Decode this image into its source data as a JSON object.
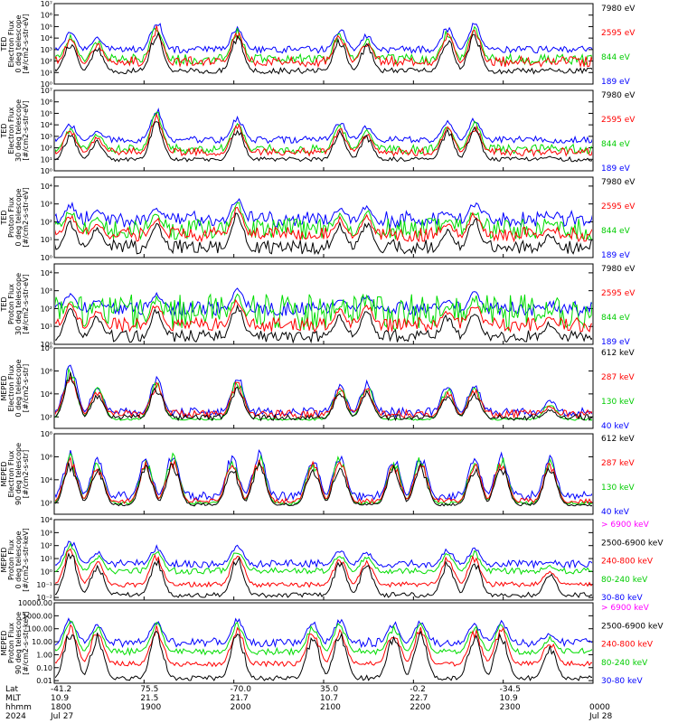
{
  "colors": {
    "black": "#000000",
    "red": "#ff0000",
    "green": "#00dd00",
    "blue": "#0000ff",
    "magenta": "#ff00ff"
  },
  "chart_data": [
    {
      "type": "line",
      "ylabel": [
        "TED",
        "Electron Flux",
        "0 deg telescope",
        "[#/cm2-s-str-eV]"
      ],
      "yscale": "log",
      "ylim_exp": [
        0,
        7
      ],
      "ytick_labels": [
        "10⁰",
        "10¹",
        "10²",
        "10³",
        "10⁴",
        "10⁵",
        "10⁶",
        "10⁷"
      ],
      "series": [
        {
          "name": "7980 eV",
          "color": "#000000"
        },
        {
          "name": "2595 eV",
          "color": "#ff0000"
        },
        {
          "name": "844 eV",
          "color": "#00dd00"
        },
        {
          "name": "189 eV",
          "color": "#0000ff"
        }
      ],
      "levels": {
        "blue": [
          2.7,
          3.3
        ],
        "green": [
          1.7,
          2.6
        ],
        "red": [
          1.5,
          2.4
        ],
        "black": [
          0.9,
          1.4
        ]
      },
      "peaks": [
        [
          0.03,
          4.6
        ],
        [
          0.08,
          4.2
        ],
        [
          0.19,
          5.7
        ],
        [
          0.34,
          5.2
        ],
        [
          0.53,
          5.0
        ],
        [
          0.58,
          4.4
        ],
        [
          0.73,
          5.1
        ],
        [
          0.78,
          5.4
        ],
        [
          0.92,
          2.2
        ]
      ]
    },
    {
      "type": "line",
      "ylabel": [
        "TED",
        "Electron Flux",
        "30 deg telescope",
        "[#/cm2-s-str-eV]"
      ],
      "yscale": "log",
      "ylim_exp": [
        0,
        7
      ],
      "ytick_labels": [
        "10⁰",
        "10¹",
        "10²",
        "10³",
        "10⁴",
        "10⁵",
        "10⁶",
        "10⁷"
      ],
      "series": [
        {
          "name": "7980 eV",
          "color": "#000000"
        },
        {
          "name": "2595 eV",
          "color": "#ff0000"
        },
        {
          "name": "844 eV",
          "color": "#00dd00"
        },
        {
          "name": "189 eV",
          "color": "#0000ff"
        }
      ],
      "levels": {
        "blue": [
          2.4,
          3.0
        ],
        "green": [
          1.5,
          2.3
        ],
        "red": [
          1.3,
          2.0
        ],
        "black": [
          0.8,
          1.2
        ]
      },
      "peaks": [
        [
          0.03,
          4.2
        ],
        [
          0.08,
          3.6
        ],
        [
          0.19,
          5.6
        ],
        [
          0.34,
          4.8
        ],
        [
          0.53,
          4.4
        ],
        [
          0.58,
          4.0
        ],
        [
          0.73,
          4.6
        ],
        [
          0.78,
          4.7
        ],
        [
          0.92,
          2.2
        ]
      ]
    },
    {
      "type": "line",
      "ylabel": [
        "TED",
        "Proton Flux",
        "0 deg telescope",
        "[#/cm2-s-str-eV]"
      ],
      "yscale": "log",
      "ylim_exp": [
        0,
        4.5
      ],
      "ytick_labels": [
        "10⁰",
        "10¹",
        "10²",
        "10³",
        "10⁴"
      ],
      "series": [
        {
          "name": "7980 eV",
          "color": "#000000"
        },
        {
          "name": "2595 eV",
          "color": "#ff0000"
        },
        {
          "name": "844 eV",
          "color": "#00dd00"
        },
        {
          "name": "189 eV",
          "color": "#0000ff"
        }
      ],
      "levels": {
        "blue": [
          1.7,
          2.6
        ],
        "green": [
          1.0,
          2.2
        ],
        "red": [
          0.9,
          1.7
        ],
        "black": [
          0.2,
          1.0
        ]
      },
      "peaks": [
        [
          0.03,
          3.1
        ],
        [
          0.08,
          2.7
        ],
        [
          0.19,
          2.9
        ],
        [
          0.34,
          3.5
        ],
        [
          0.53,
          2.9
        ],
        [
          0.58,
          3.0
        ],
        [
          0.73,
          2.6
        ],
        [
          0.78,
          3.2
        ],
        [
          0.92,
          2.3
        ]
      ]
    },
    {
      "type": "line",
      "ylabel": [
        "TED",
        "Proton Flux",
        "30 deg telescope",
        "[#/cm2-s-str-eV]"
      ],
      "yscale": "log",
      "ylim_exp": [
        0,
        4.5
      ],
      "ytick_labels": [
        "10⁰",
        "10¹",
        "10²",
        "10³",
        "10⁴"
      ],
      "series": [
        {
          "name": "7980 eV",
          "color": "#000000"
        },
        {
          "name": "2595 eV",
          "color": "#ff0000"
        },
        {
          "name": "844 eV",
          "color": "#00dd00"
        },
        {
          "name": "189 eV",
          "color": "#0000ff"
        }
      ],
      "levels": {
        "blue": [
          1.6,
          2.4
        ],
        "green": [
          0.8,
          2.8
        ],
        "red": [
          0.7,
          1.5
        ],
        "black": [
          0.1,
          0.8
        ]
      },
      "peaks": [
        [
          0.03,
          3.0
        ],
        [
          0.08,
          2.6
        ],
        [
          0.19,
          3.0
        ],
        [
          0.34,
          3.3
        ],
        [
          0.53,
          2.6
        ],
        [
          0.58,
          2.9
        ],
        [
          0.73,
          2.6
        ],
        [
          0.78,
          3.0
        ],
        [
          0.92,
          2.2
        ]
      ]
    },
    {
      "type": "line",
      "ylabel": [
        "MEPED",
        "Electron Flux",
        "0 deg telescope",
        "[#/cm2-s-str]"
      ],
      "yscale": "log",
      "ylim_exp": [
        1,
        8
      ],
      "ytick_labels": [
        "10²",
        "10⁴",
        "10⁶",
        "10⁸"
      ],
      "ytick_exps": [
        2,
        4,
        6,
        8
      ],
      "series": [
        {
          "name": "612 keV",
          "color": "#000000"
        },
        {
          "name": "287 keV",
          "color": "#ff0000"
        },
        {
          "name": "130 keV",
          "color": "#00dd00"
        },
        {
          "name": "40 keV",
          "color": "#0000ff"
        }
      ],
      "levels": {
        "blue": [
          2.0,
          2.8
        ],
        "green": [
          1.7,
          1.9
        ],
        "red": [
          1.9,
          2.6
        ],
        "black": [
          1.7,
          2.2
        ]
      },
      "peaks": [
        [
          0.03,
          6.8
        ],
        [
          0.08,
          5.0
        ],
        [
          0.19,
          5.6
        ],
        [
          0.34,
          5.8
        ],
        [
          0.53,
          5.1
        ],
        [
          0.58,
          5.2
        ],
        [
          0.73,
          5.0
        ],
        [
          0.78,
          5.2
        ],
        [
          0.92,
          3.6
        ]
      ]
    },
    {
      "type": "line",
      "ylabel": [
        "MEPED",
        "Electron Flux",
        "90 deg telescope",
        "[#/cm2-s-str]"
      ],
      "yscale": "log",
      "ylim_exp": [
        1,
        8
      ],
      "ytick_labels": [
        "10²",
        "10⁴",
        "10⁶",
        "10⁸"
      ],
      "ytick_exps": [
        2,
        4,
        6,
        8
      ],
      "series": [
        {
          "name": "612 keV",
          "color": "#000000"
        },
        {
          "name": "287 keV",
          "color": "#ff0000"
        },
        {
          "name": "130 keV",
          "color": "#00dd00"
        },
        {
          "name": "40 keV",
          "color": "#0000ff"
        }
      ],
      "levels": {
        "blue": [
          2.2,
          3.0
        ],
        "green": [
          1.8,
          2.1
        ],
        "red": [
          1.9,
          2.4
        ],
        "black": [
          1.7,
          2.0
        ]
      },
      "peaks": [
        [
          0.03,
          6.6
        ],
        [
          0.08,
          6.0
        ],
        [
          0.17,
          6.2
        ],
        [
          0.22,
          6.6
        ],
        [
          0.33,
          6.3
        ],
        [
          0.38,
          6.6
        ],
        [
          0.48,
          6.2
        ],
        [
          0.53,
          6.6
        ],
        [
          0.63,
          6.2
        ],
        [
          0.68,
          6.4
        ],
        [
          0.78,
          6.2
        ],
        [
          0.83,
          6.4
        ],
        [
          0.92,
          6.2
        ]
      ]
    },
    {
      "type": "line",
      "ylabel": [
        "MEPED",
        "Proton Flux",
        "0 deg telescope",
        "[#/cm2-s-str-keV]"
      ],
      "yscale": "log",
      "ylim_exp": [
        -2.2,
        4
      ],
      "ytick_labels": [
        "10⁻²",
        "10⁻¹",
        "10⁰",
        "10¹",
        "10²",
        "10³",
        "10⁴"
      ],
      "ytick_exps": [
        -2,
        -1,
        0,
        1,
        2,
        3,
        4
      ],
      "series": [
        {
          "name": "> 6900 keV",
          "color": "#ff00ff"
        },
        {
          "name": "2500-6900 keV",
          "color": "#000000"
        },
        {
          "name": "240-800 keV",
          "color": "#ff0000"
        },
        {
          "name": "80-240 keV",
          "color": "#00dd00"
        },
        {
          "name": "30-80 keV",
          "color": "#0000ff"
        }
      ],
      "levels": {
        "blue": [
          0.3,
          0.9
        ],
        "green": [
          -0.2,
          0.3
        ],
        "red": [
          -1.2,
          -0.8
        ],
        "black": [
          -2.0,
          -1.6
        ]
      },
      "peaks": [
        [
          0.03,
          2.6
        ],
        [
          0.08,
          1.6
        ],
        [
          0.19,
          2.0
        ],
        [
          0.34,
          2.2
        ],
        [
          0.53,
          1.8
        ],
        [
          0.58,
          1.6
        ],
        [
          0.73,
          1.8
        ],
        [
          0.78,
          1.9
        ],
        [
          0.92,
          0.8
        ]
      ]
    },
    {
      "type": "line",
      "ylabel": [
        "MEPED",
        "Proton Flux",
        "90 deg telescope",
        "[#/cm2-s-str-keV]"
      ],
      "yscale": "log",
      "ylim_exp": [
        -2.2,
        4
      ],
      "ytick_labels": [
        "0.01",
        "0.10",
        "1.00",
        "10.00",
        "100.00",
        "1000.00",
        "10000.00"
      ],
      "ytick_exps": [
        -2,
        -1,
        0,
        1,
        2,
        3,
        4
      ],
      "series": [
        {
          "name": "> 6900 keV",
          "color": "#ff00ff"
        },
        {
          "name": "2500-6900 keV",
          "color": "#000000"
        },
        {
          "name": "240-800 keV",
          "color": "#ff0000"
        },
        {
          "name": "80-240 keV",
          "color": "#00dd00"
        },
        {
          "name": "30-80 keV",
          "color": "#0000ff"
        }
      ],
      "levels": {
        "blue": [
          0.6,
          1.3
        ],
        "green": [
          0.0,
          0.5
        ],
        "red": [
          -0.9,
          -0.5
        ],
        "black": [
          -2.0,
          -1.6
        ]
      },
      "peaks": [
        [
          0.03,
          3.0
        ],
        [
          0.08,
          2.6
        ],
        [
          0.19,
          2.9
        ],
        [
          0.34,
          2.9
        ],
        [
          0.48,
          2.6
        ],
        [
          0.53,
          2.8
        ],
        [
          0.63,
          2.6
        ],
        [
          0.68,
          2.8
        ],
        [
          0.78,
          2.6
        ],
        [
          0.83,
          2.8
        ],
        [
          0.92,
          1.7
        ]
      ]
    }
  ],
  "x_axis": {
    "row_labels": [
      "Lat",
      "MLT",
      "hhmm",
      "2024"
    ],
    "columns": [
      {
        "lat": "-41.2",
        "mlt": "10.9",
        "hhmm": "1800",
        "date": "Jul 27"
      },
      {
        "lat": "75.5",
        "mlt": "21.5",
        "hhmm": "1900",
        "date": ""
      },
      {
        "lat": "-70.0",
        "mlt": "21.7",
        "hhmm": "2000",
        "date": ""
      },
      {
        "lat": "35.0",
        "mlt": "10.7",
        "hhmm": "2100",
        "date": ""
      },
      {
        "lat": "-0.2",
        "mlt": "22.7",
        "hhmm": "2200",
        "date": ""
      },
      {
        "lat": "-34.5",
        "mlt": "10.9",
        "hhmm": "2300",
        "date": ""
      },
      {
        "lat": "",
        "mlt": "",
        "hhmm": "0000",
        "date": "Jul 28"
      }
    ]
  }
}
